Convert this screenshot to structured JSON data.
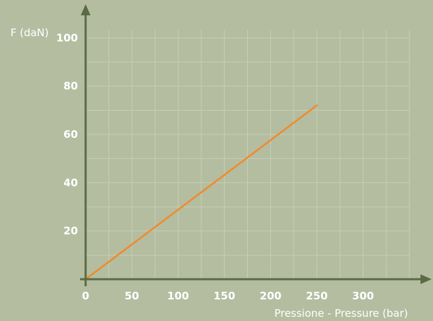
{
  "colors": {
    "background": "#b4bda0",
    "grid": "#c7cfb4",
    "axis": "#5a6b45",
    "line": "#f08a2a",
    "text": "#ffffff"
  },
  "chart_data": {
    "type": "line",
    "title": "",
    "xlabel": "Pressione - Pressure (bar)",
    "ylabel": "F (daN)",
    "xlim": [
      0,
      350
    ],
    "ylim": [
      0,
      105
    ],
    "x_ticks": [
      0,
      50,
      100,
      150,
      200,
      250,
      300
    ],
    "y_ticks": [
      20,
      40,
      60,
      80,
      100
    ],
    "grid": true,
    "series": [
      {
        "x": [
          0,
          250
        ],
        "y": [
          0,
          72
        ]
      }
    ]
  }
}
